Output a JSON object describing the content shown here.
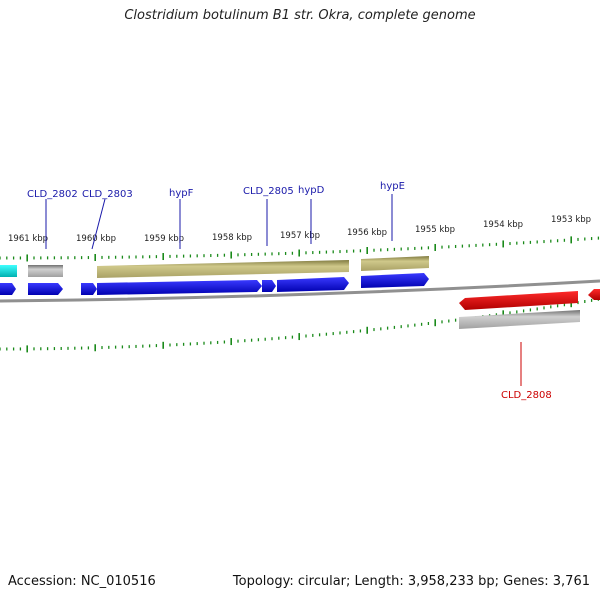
{
  "title": "Clostridium botulinum B1 str. Okra, complete genome",
  "footer": {
    "accession": "Accession: NC_010516",
    "summary": "Topology: circular; Length: 3,958,233 bp; Genes: 3,761"
  },
  "scale_ticks": [
    "1961 kbp",
    "1960 kbp",
    "1959 kbp",
    "1958 kbp",
    "1957 kbp",
    "1956 kbp",
    "1955 kbp",
    "1954 kbp",
    "1953 kbp"
  ],
  "gene_labels_forward": [
    "CLD_2802",
    "CLD_2803",
    "hypF",
    "CLD_2805",
    "hypD",
    "hypE"
  ],
  "gene_labels_reverse": [
    "CLD_2808"
  ],
  "colors": {
    "blue_gene": "#0a0ae6",
    "red_gene": "#e60000",
    "cyan_gene": "#00e0e0",
    "olive_feature": "#b5ad6c",
    "gray_feature": "#a8a8a8",
    "backbone": "#888888",
    "tick": "#1a8a1a",
    "forward_label": "#1a1aaa",
    "reverse_label": "#cc0000"
  }
}
